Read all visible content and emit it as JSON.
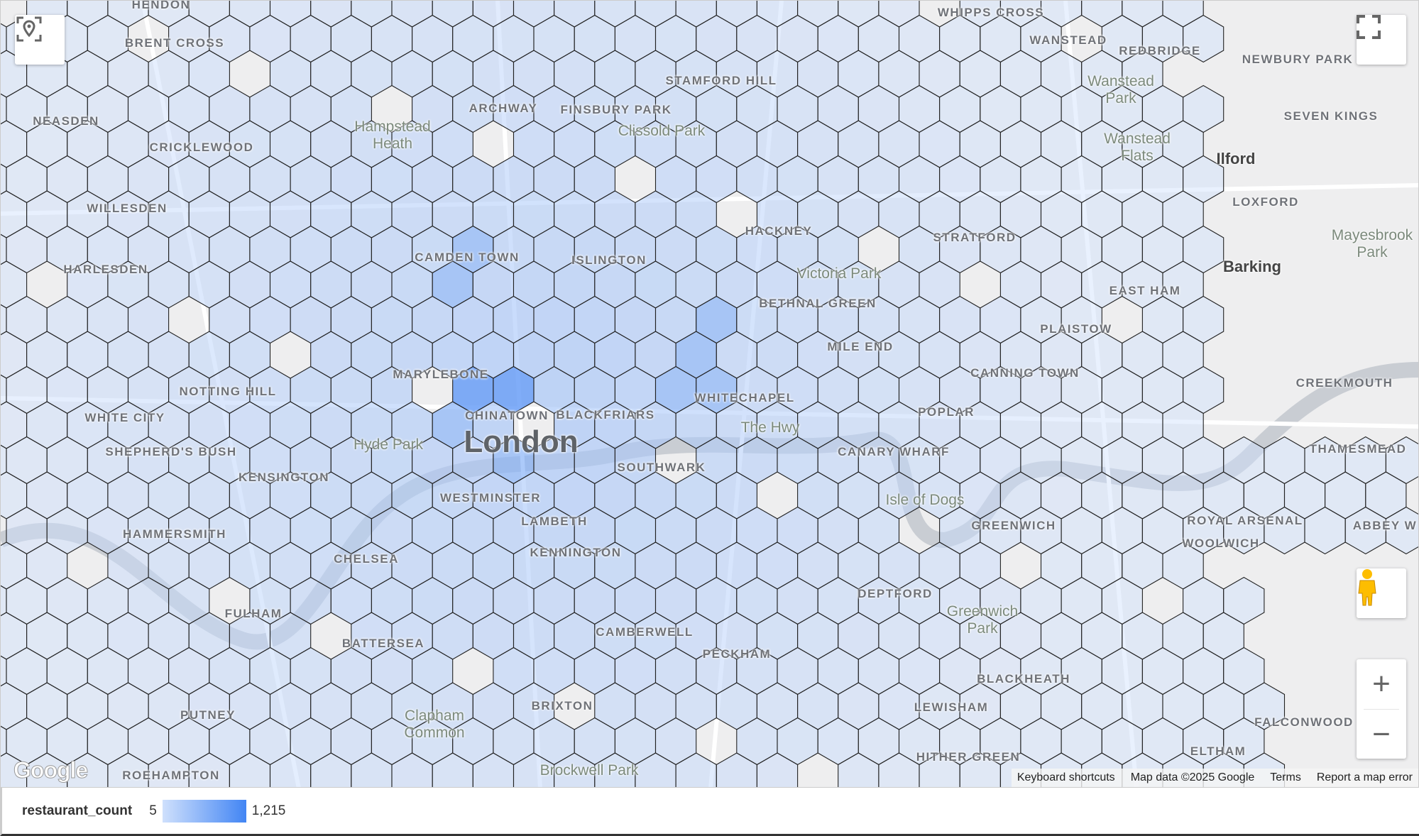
{
  "map": {
    "place_labels": [
      "HENDON",
      "BRENT CROSS",
      "NEASDEN",
      "CRICKLEWOOD",
      "WILLESDEN",
      "HARLESDEN",
      "Hampstead Heath",
      "CAMDEN TOWN",
      "ISLINGTON",
      "ARCHWAY",
      "FINSBURY PARK",
      "STAMFORD HILL",
      "Clissold Park",
      "HACKNEY",
      "Victoria Park",
      "BETHNAL GREEN",
      "MILE END",
      "STRATFORD",
      "MARYLEBONE",
      "CHINATOWN",
      "BLACKFRIARS",
      "WHITECHAPEL",
      "London",
      "NOTTING HILL",
      "WHITE CITY",
      "SHEPHERD'S BUSH",
      "Hyde Park",
      "KENSINGTON",
      "WESTMINSTER",
      "SOUTHWARK",
      "LAMBETH",
      "KENNINGTON",
      "HAMMERSMITH",
      "CHELSEA",
      "FULHAM",
      "BATTERSEA",
      "CAMBERWELL",
      "PECKHAM",
      "BRIXTON",
      "Clapham Common",
      "PUTNEY",
      "ROEHAMPTON",
      "Brockwell Park",
      "DEPTFORD",
      "Greenwich Park",
      "LEWISHAM",
      "HITHER GREEN",
      "BLACKHEATH",
      "GREENWICH",
      "Isle of Dogs",
      "CANARY WHARF",
      "POPLAR",
      "CANNING TOWN",
      "PLAISTOW",
      "EAST HAM",
      "Barking",
      "Mayesbrook Park",
      "LOXFORD",
      "Ilford",
      "SEVEN KINGS",
      "NEWBURY PARK",
      "REDBRIDGE",
      "WANSTEAD",
      "Wanstead Park",
      "Wanstead Flats",
      "WHIPPS CROSS",
      "CREEKMOUTH",
      "THAMESMEAD",
      "ROYAL ARSENAL",
      "WOOLWICH",
      "ABBEY W",
      "FALCONWOOD",
      "ELTHAM",
      "The Hwy"
    ],
    "controls": {
      "zoom_in": "+",
      "zoom_out": "−"
    },
    "icons": {
      "locate": "my-location-icon",
      "fullscreen": "fullscreen-icon",
      "pegman": "street-view-pegman-icon"
    },
    "logo": "Google",
    "attribution": [
      "Keyboard shortcuts",
      "Map data ©2025 Google",
      "Terms",
      "Report a map error"
    ]
  },
  "legend": {
    "title": "restaurant_count",
    "min": "5",
    "max": "1,215",
    "color_min": "#cfe0fc",
    "color_max": "#4285f4"
  }
}
